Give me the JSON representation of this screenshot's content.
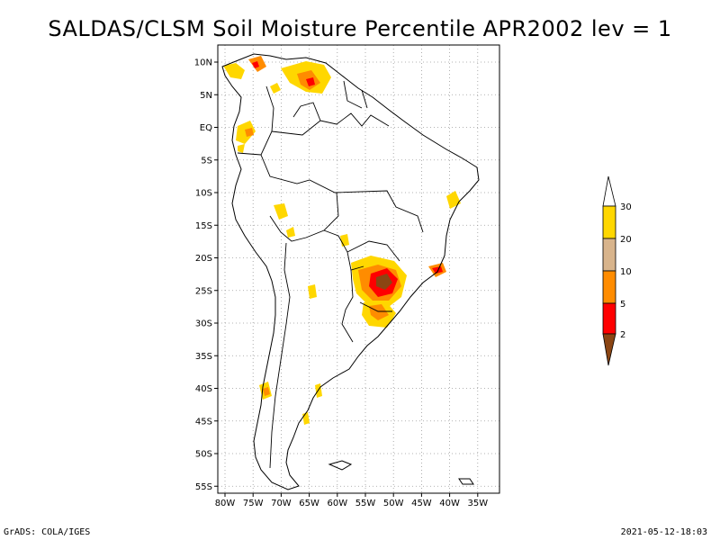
{
  "title": "SALDAS/CLSM Soil Moisture Percentile APR2002 lev = 1",
  "lat_labels": [
    "10N",
    "5N",
    "EQ",
    "5S",
    "10S",
    "15S",
    "20S",
    "25S",
    "30S",
    "35S",
    "40S",
    "45S",
    "50S",
    "55S"
  ],
  "lon_labels": [
    "80W",
    "75W",
    "70W",
    "65W",
    "60W",
    "55W",
    "50W",
    "45W",
    "40W",
    "35W"
  ],
  "colorbar": {
    "labels": [
      "30",
      "20",
      "10",
      "5",
      "2"
    ],
    "colors": {
      "above": "#ffffff",
      "c20_30": "#ffd700",
      "c10_20": "#d8b48c",
      "c5_10": "#ff8c00",
      "c2_5": "#ff0000",
      "below": "#8b4513"
    }
  },
  "footer_left": "GrADS: COLA/IGES",
  "footer_right": "2021-05-12-18:03"
}
